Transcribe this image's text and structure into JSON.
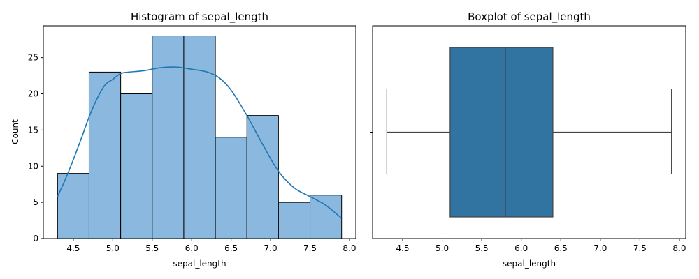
{
  "chart_data": [
    {
      "type": "bar",
      "title": "Histogram of sepal_length",
      "xlabel": "sepal_length",
      "ylabel": "Count",
      "xlim": [
        4.12,
        8.08
      ],
      "ylim": [
        0,
        29.4
      ],
      "xticks": [
        "4.5",
        "5.0",
        "5.5",
        "6.0",
        "6.5",
        "7.0",
        "7.5",
        "8.0"
      ],
      "yticks": [
        "0",
        "5",
        "10",
        "15",
        "20",
        "25"
      ],
      "bin_edges": [
        4.3,
        4.7,
        5.1,
        5.5,
        5.9,
        6.3,
        6.7,
        7.1,
        7.5,
        7.9
      ],
      "values": [
        9,
        23,
        20,
        28,
        28,
        14,
        17,
        5,
        6
      ],
      "kde": {
        "x": [
          4.3,
          4.4,
          4.5,
          4.6,
          4.7,
          4.8,
          4.9,
          5.0,
          5.1,
          5.2,
          5.4,
          5.6,
          5.8,
          6.0,
          6.2,
          6.35,
          6.5,
          6.7,
          6.9,
          7.1,
          7.3,
          7.5,
          7.7,
          7.9
        ],
        "y": [
          5.8,
          8.2,
          10.9,
          13.8,
          16.8,
          19.3,
          21.2,
          22.0,
          22.8,
          23.0,
          23.2,
          23.6,
          23.7,
          23.4,
          23.0,
          22.2,
          20.5,
          17.0,
          13.0,
          9.3,
          7.0,
          5.8,
          4.6,
          2.8
        ]
      },
      "bar_color": "#8bb8de",
      "line_color": "#1f77b4"
    },
    {
      "type": "box",
      "title": "Boxplot of sepal_length",
      "xlabel": "sepal_length",
      "xlim": [
        4.12,
        8.08
      ],
      "xticks": [
        "4.5",
        "5.0",
        "5.5",
        "6.0",
        "6.5",
        "7.0",
        "7.5",
        "8.0"
      ],
      "min": 4.3,
      "q1": 5.1,
      "median": 5.8,
      "q3": 6.4,
      "max": 7.9,
      "box_color": "#3274a1"
    }
  ]
}
